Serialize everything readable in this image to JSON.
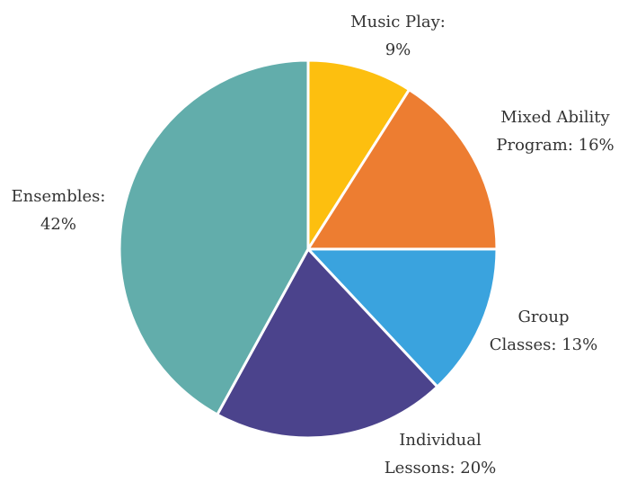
{
  "chart_data": {
    "type": "pie",
    "title": "",
    "categories": [
      "Music Play",
      "Mixed Ability Program",
      "Group Classes",
      "Individual Lessons",
      "Ensembles"
    ],
    "values": [
      9,
      16,
      13,
      20,
      42
    ],
    "unit": "%",
    "colors": [
      "#FDBF0F",
      "#ED7D31",
      "#3AA3DE",
      "#4B438C",
      "#62ADAB"
    ],
    "labels": [
      {
        "lines": [
          "Music Play:",
          "9%"
        ]
      },
      {
        "lines": [
          "Mixed Ability",
          "Program: 16%"
        ]
      },
      {
        "lines": [
          "Group",
          "Classes: 13%"
        ]
      },
      {
        "lines": [
          "Individual",
          "Lessons: 20%"
        ]
      },
      {
        "lines": [
          "Ensembles:",
          "42%"
        ]
      }
    ],
    "legend": "none",
    "start_angle": "12 o'clock",
    "direction": "clockwise"
  }
}
